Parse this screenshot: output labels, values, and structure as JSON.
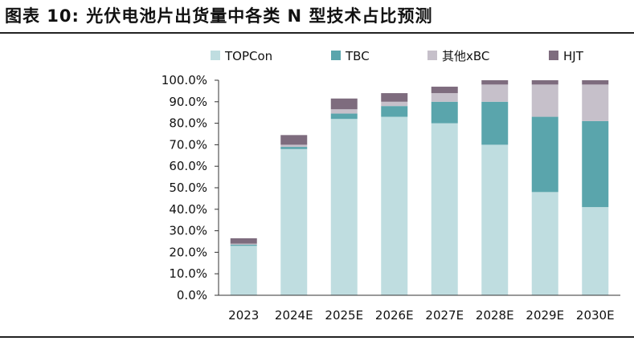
{
  "title": "图表 10: 光伏电池片出货量中各类 N 型技术占比预测",
  "colors": {
    "TOPCon": "#bfdde0",
    "TBC": "#5aa5ac",
    "其他xBC": "#c6c0ca",
    "HJT": "#7e6c7e"
  },
  "chart_data": {
    "type": "bar",
    "stacked": true,
    "categories": [
      "2023",
      "2024E",
      "2025E",
      "2026E",
      "2027E",
      "2028E",
      "2029E",
      "2030E"
    ],
    "series": [
      {
        "name": "TOPCon",
        "values": [
          23.0,
          68.0,
          82.0,
          83.0,
          80.0,
          70.0,
          48.0,
          41.0
        ]
      },
      {
        "name": "TBC",
        "values": [
          0.5,
          1.0,
          2.5,
          5.0,
          10.0,
          20.0,
          35.0,
          40.0
        ]
      },
      {
        "name": "其他xBC",
        "values": [
          0.5,
          1.0,
          2.0,
          2.0,
          4.0,
          8.0,
          15.0,
          17.0
        ]
      },
      {
        "name": "HJT",
        "values": [
          2.5,
          4.5,
          5.0,
          4.0,
          3.0,
          2.0,
          2.0,
          2.0
        ]
      }
    ],
    "y_ticks": [
      "0.0%",
      "10.0%",
      "20.0%",
      "30.0%",
      "40.0%",
      "50.0%",
      "60.0%",
      "70.0%",
      "80.0%",
      "90.0%",
      "100.0%"
    ],
    "ylim": [
      0,
      100
    ],
    "grid": false,
    "legend_position": "top"
  }
}
